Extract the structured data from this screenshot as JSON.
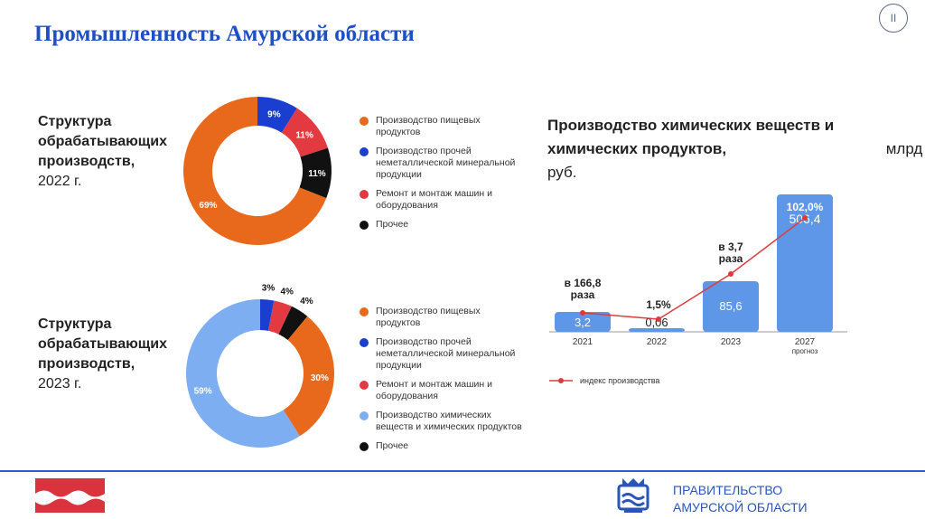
{
  "page": {
    "title": "Промышленность Амурской области",
    "page_number": "II"
  },
  "structure_2022": {
    "title_line1": "Структура",
    "title_line2": "обрабатывающих",
    "title_line3": "производств,",
    "year": "2022 г."
  },
  "structure_2023": {
    "title_line1": "Структура",
    "title_line2": "обрабатывающих",
    "title_line3": "производств,",
    "year": "2023 г."
  },
  "legend_2022": [
    {
      "label": "Производство пищевых продуктов",
      "color": "#e8681c"
    },
    {
      "label": "Производство прочей неметаллической минеральной продукции",
      "color": "#1a3fd0"
    },
    {
      "label": "Ремонт и монтаж машин и оборудования",
      "color": "#e23a40"
    },
    {
      "label": "Прочее",
      "color": "#111111"
    }
  ],
  "legend_2023": [
    {
      "label": "Производство пищевых продуктов",
      "color": "#e8681c"
    },
    {
      "label": "Производство прочей неметаллической минеральной продукции",
      "color": "#1a3fd0"
    },
    {
      "label": "Ремонт и монтаж машин и оборудования",
      "color": "#e23a40"
    },
    {
      "label": "Производство химических веществ и химических продуктов",
      "color": "#7eaef2"
    },
    {
      "label": "Прочее",
      "color": "#111111"
    }
  ],
  "chemical": {
    "title_bold": "Производство химических веществ и химических продуктов,",
    "title_unit": " млрд руб.",
    "legend_label": "индекс производства"
  },
  "footer": {
    "gov_line1": "Правительство",
    "gov_line2": "Амурской области"
  },
  "chart_data": [
    {
      "type": "pie",
      "title": "Структура обрабатывающих производств, 2022 г.",
      "donut": true,
      "slices": [
        {
          "name": "Производство пищевых продуктов",
          "value": 69,
          "label": "69%",
          "color": "#e8681c"
        },
        {
          "name": "Производство прочей неметаллической минеральной продукции",
          "value": 9,
          "label": "9%",
          "color": "#1a3fd0"
        },
        {
          "name": "Ремонт и монтаж машин и оборудования",
          "value": 11,
          "label": "11%",
          "color": "#e23a40"
        },
        {
          "name": "Прочее",
          "value": 11,
          "label": "11%",
          "color": "#111111"
        }
      ]
    },
    {
      "type": "pie",
      "title": "Структура обрабатывающих производств, 2023 г.",
      "donut": true,
      "slices": [
        {
          "name": "Производство пищевых продуктов",
          "value": 30,
          "label": "30%",
          "color": "#e8681c"
        },
        {
          "name": "Производство прочей неметаллической минеральной продукции",
          "value": 3,
          "label": "3%",
          "color": "#1a3fd0"
        },
        {
          "name": "Ремонт и монтаж машин и оборудования",
          "value": 4,
          "label": "4%",
          "color": "#e23a40"
        },
        {
          "name": "Производство химических веществ и химических продуктов",
          "value": 59,
          "label": "59%",
          "color": "#7eaef2"
        },
        {
          "name": "Прочее",
          "value": 4,
          "label": "4%",
          "color": "#111111"
        }
      ]
    },
    {
      "type": "bar",
      "title": "Производство химических веществ и химических продуктов, млрд руб.",
      "categories": [
        "2021",
        "2022",
        "2023",
        "2027\nпрогноз"
      ],
      "values": [
        3.2,
        0.06,
        85.6,
        506.4
      ],
      "value_labels": [
        "3,2",
        "0,06",
        "85,6",
        "506,4"
      ],
      "bar_color": "#5f97e8",
      "index_series": {
        "name": "индекс производства",
        "color": "#dd3b3b",
        "labels": [
          "в 166,8\nраза",
          "1,5%",
          "в 3,7\nраза",
          "102,0%"
        ]
      }
    }
  ]
}
